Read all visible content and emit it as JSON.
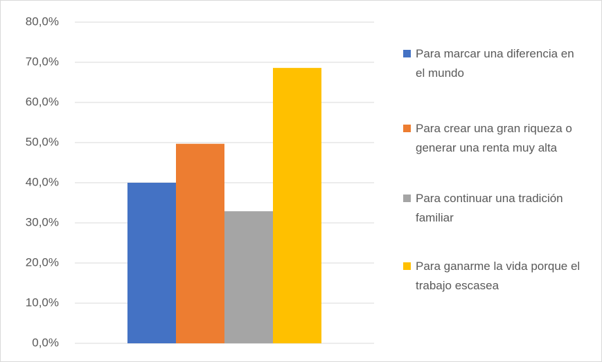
{
  "chart_data": {
    "type": "bar",
    "categories": [
      null
    ],
    "series": [
      {
        "name": "Para marcar una diferencia en el mundo",
        "color": "#4472c4",
        "values": [
          40.0
        ]
      },
      {
        "name": "Para crear una gran riqueza o generar una renta muy alta",
        "color": "#ed7d31",
        "values": [
          49.7
        ]
      },
      {
        "name": "Para continuar una tradición familiar",
        "color": "#a5a5a5",
        "values": [
          32.9
        ]
      },
      {
        "name": "Para ganarme la vida porque el trabajo escasea",
        "color": "#ffc000",
        "values": [
          68.6
        ]
      }
    ],
    "ylim": [
      0,
      80
    ],
    "yticks": [
      {
        "value": 0,
        "label": "0,0%"
      },
      {
        "value": 10,
        "label": "10,0%"
      },
      {
        "value": 20,
        "label": "20,0%"
      },
      {
        "value": 30,
        "label": "30,0%"
      },
      {
        "value": 40,
        "label": "40,0%"
      },
      {
        "value": 50,
        "label": "50,0%"
      },
      {
        "value": 60,
        "label": "60,0%"
      },
      {
        "value": 70,
        "label": "70,0%"
      },
      {
        "value": 80,
        "label": "80,0%"
      }
    ],
    "grid": true,
    "legend": "right"
  }
}
